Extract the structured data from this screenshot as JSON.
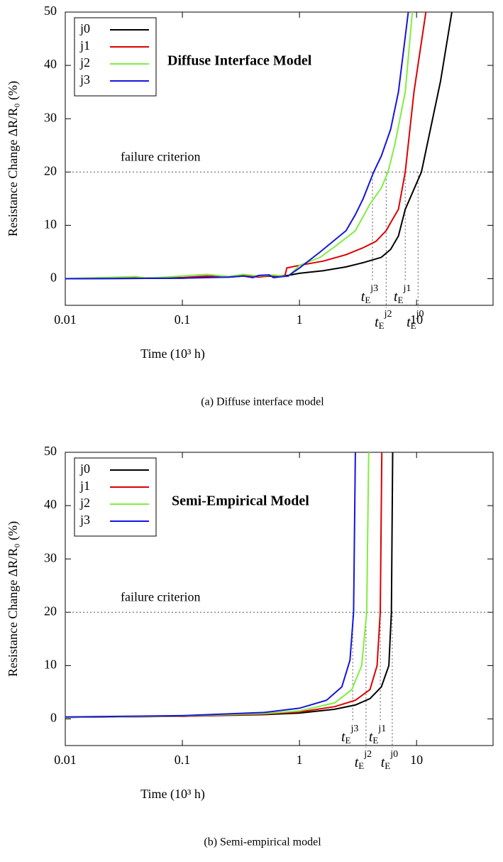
{
  "chart_data": [
    {
      "type": "line",
      "title": "Diffuse Interface Model",
      "caption": "(a)  Diffuse interface model",
      "x_label": "Time (10³ h)",
      "y_label": "Resistance Change ΔR/R₀ (%)",
      "x_log": true,
      "xlim": [
        0.01,
        45
      ],
      "xticks": [
        0.01,
        0.1,
        1,
        10
      ],
      "ylim": [
        -5,
        50
      ],
      "yticks": [
        0,
        10,
        20,
        30,
        40,
        50
      ],
      "grid": false,
      "legend": "upper left",
      "failure_criterion": {
        "label": "failure criterion",
        "value": 20
      },
      "failure_symbol": "t",
      "failure_sub": "E",
      "failure_times": [
        {
          "sup": "j3",
          "value": 4.2
        },
        {
          "sup": "j2",
          "value": 5.5
        },
        {
          "sup": "j1",
          "value": 8.0
        },
        {
          "sup": "j0",
          "value": 10.3
        }
      ],
      "series": [
        {
          "name": "j0",
          "color": "#000000",
          "x": [
            0.01,
            0.1,
            0.16,
            0.25,
            0.33,
            0.45,
            0.6,
            0.8,
            1,
            1.6,
            2.5,
            3.5,
            5,
            6,
            7,
            8,
            11,
            16,
            20
          ],
          "values": [
            0,
            0.1,
            0.3,
            0.3,
            0.5,
            0.4,
            0.5,
            0.6,
            1,
            1.5,
            2.2,
            3,
            4,
            5.5,
            8,
            13,
            20,
            37,
            50
          ]
        },
        {
          "name": "j1",
          "color": "#dd0000",
          "x": [
            0.01,
            0.1,
            0.16,
            0.25,
            0.33,
            0.45,
            0.6,
            0.75,
            0.78,
            1,
            1.6,
            2.5,
            3.5,
            4.5,
            5.5,
            6,
            7,
            8,
            9.5,
            12
          ],
          "values": [
            0,
            0.2,
            0.5,
            0.4,
            0.6,
            0.3,
            0.6,
            0.5,
            2,
            2.5,
            3.3,
            4.5,
            5.8,
            7,
            9,
            10.5,
            13,
            20,
            35,
            50
          ]
        },
        {
          "name": "j2",
          "color": "#80ee40",
          "x": [
            0.01,
            0.04,
            0.05,
            0.1,
            0.16,
            0.25,
            0.33,
            0.45,
            0.6,
            0.8,
            1,
            1.5,
            2,
            3,
            4,
            5,
            5.7,
            6.5,
            8,
            9.2
          ],
          "values": [
            0,
            0.4,
            0.1,
            0.5,
            0.8,
            0.4,
            0.8,
            0.5,
            0.7,
            0.4,
            2.5,
            4,
            6,
            9,
            14,
            17,
            20,
            25,
            35,
            50
          ]
        },
        {
          "name": "j3",
          "color": "#1515dd",
          "x": [
            0.01,
            0.1,
            0.16,
            0.25,
            0.33,
            0.4,
            0.45,
            0.55,
            0.6,
            0.8,
            1,
            1.5,
            2.5,
            3,
            3.5,
            4.3,
            5,
            6,
            7,
            8.5
          ],
          "values": [
            0,
            0.1,
            0.2,
            0.3,
            0.5,
            0.2,
            0.6,
            0.7,
            0.2,
            0.5,
            2,
            5,
            9,
            12,
            15,
            20,
            23,
            28,
            35,
            50
          ]
        }
      ]
    },
    {
      "type": "line",
      "title": "Semi-Empirical Model",
      "caption": "(b)  Semi-empirical model",
      "x_label": "Time (10³ h)",
      "y_label": "Resistance Change ΔR/R₀ (%)",
      "x_log": true,
      "xlim": [
        0.01,
        45
      ],
      "xticks": [
        0.01,
        0.1,
        1,
        10
      ],
      "ylim": [
        -5,
        50
      ],
      "yticks": [
        0,
        10,
        20,
        30,
        40,
        50
      ],
      "grid": false,
      "legend": "upper left",
      "failure_criterion": {
        "label": "failure criterion",
        "value": 20
      },
      "failure_symbol": "t",
      "failure_sub": "E",
      "failure_times": [
        {
          "sup": "j3",
          "value": 2.85
        },
        {
          "sup": "j2",
          "value": 3.7
        },
        {
          "sup": "j1",
          "value": 4.9
        },
        {
          "sup": "j0",
          "value": 6.2
        }
      ],
      "series": [
        {
          "name": "j0",
          "color": "#000000",
          "x": [
            0.01,
            0.1,
            0.5,
            1,
            2,
            3,
            4,
            5,
            5.8,
            6.1,
            6.25
          ],
          "values": [
            0.3,
            0.5,
            0.8,
            1.1,
            1.8,
            2.6,
            3.8,
            6,
            10,
            20,
            50
          ]
        },
        {
          "name": "j1",
          "color": "#dd0000",
          "x": [
            0.01,
            0.1,
            0.5,
            1,
            2,
            3,
            4,
            4.6,
            4.9,
            5.05
          ],
          "values": [
            0.3,
            0.5,
            0.9,
            1.3,
            2.3,
            3.5,
            5.5,
            10,
            20,
            50
          ]
        },
        {
          "name": "j2",
          "color": "#80ee40",
          "x": [
            0.01,
            0.1,
            0.5,
            1,
            2,
            2.8,
            3.4,
            3.75,
            3.9
          ],
          "values": [
            0.3,
            0.55,
            1,
            1.5,
            3,
            5.5,
            10,
            20,
            50
          ]
        },
        {
          "name": "j3",
          "color": "#1515dd",
          "x": [
            0.01,
            0.1,
            0.5,
            1,
            1.7,
            2.3,
            2.7,
            2.9,
            3.0
          ],
          "values": [
            0.35,
            0.6,
            1.2,
            2,
            3.5,
            6,
            11,
            20,
            50
          ]
        }
      ]
    }
  ]
}
